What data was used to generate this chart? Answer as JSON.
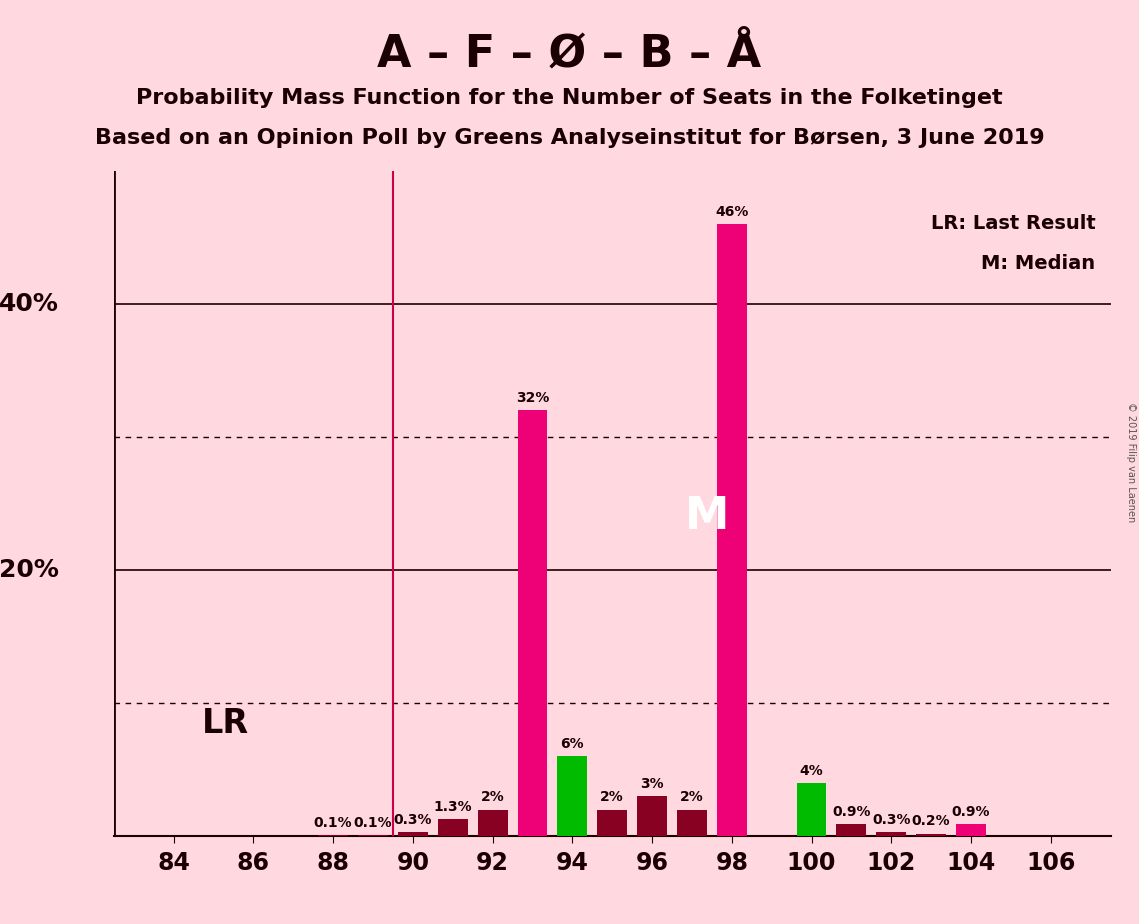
{
  "title_main": "A – F – Ø – B – Å",
  "title_sub1": "Probability Mass Function for the Number of Seats in the Folketinget",
  "title_sub2": "Based on an Opinion Poll by Greens Analyseinstitut for Børsen, 3 June 2019",
  "copyright": "© 2019 Filip van Laenen",
  "background_color": "#ffd8e0",
  "seats": [
    84,
    85,
    86,
    87,
    88,
    89,
    90,
    91,
    92,
    93,
    94,
    95,
    96,
    97,
    98,
    99,
    100,
    101,
    102,
    103,
    104,
    105,
    106
  ],
  "values": [
    0.0,
    0.0,
    0.0,
    0.0,
    0.1,
    0.1,
    0.3,
    1.3,
    2.0,
    32.0,
    6.0,
    2.0,
    3.0,
    2.0,
    46.0,
    0.0,
    4.0,
    0.9,
    0.3,
    0.2,
    0.9,
    0.0,
    0.0
  ],
  "bar_colors": [
    "#880022",
    "#880022",
    "#880022",
    "#880022",
    "#880022",
    "#880022",
    "#880022",
    "#880022",
    "#880022",
    "#ee0077",
    "#00bb00",
    "#880022",
    "#880022",
    "#880022",
    "#ee0077",
    "#ee0077",
    "#00bb00",
    "#880022",
    "#880022",
    "#880022",
    "#ee0077",
    "#880022",
    "#880022"
  ],
  "lr_x": 89.5,
  "median_x": 98,
  "dotted_lines": [
    10,
    30
  ],
  "solid_lines": [
    20,
    40
  ],
  "xlim": [
    82.5,
    107.5
  ],
  "ylim": [
    0,
    50
  ],
  "xtick_positions": [
    84,
    86,
    88,
    90,
    92,
    94,
    96,
    98,
    100,
    102,
    104,
    106
  ],
  "ylabel_values": [
    20,
    40
  ],
  "ylabel_labels": [
    "20%",
    "40%"
  ]
}
